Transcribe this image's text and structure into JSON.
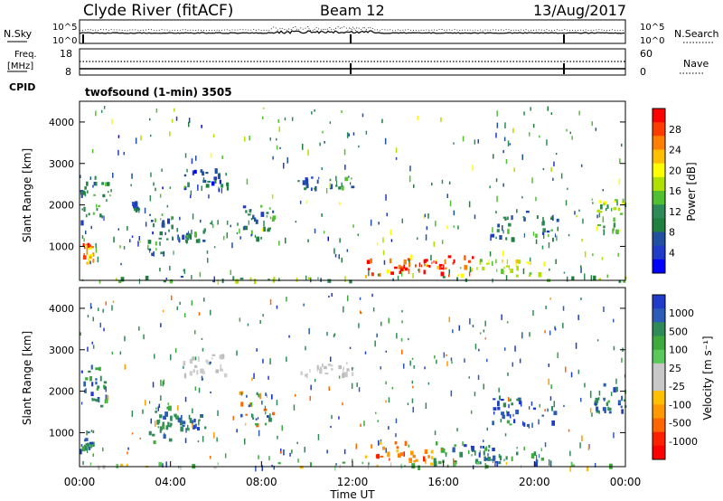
{
  "header": {
    "station": "Clyde River (fitACF)",
    "beam": "Beam 12",
    "date": "13/Aug/2017"
  },
  "noise_panel": {
    "left_label": "N.Sky",
    "right_label": "N.Search",
    "left_ticks": [
      "10^5",
      "10^0"
    ],
    "right_ticks": [
      "10^5",
      "10^0"
    ]
  },
  "freq_panel": {
    "left_label_line1": "Freq.",
    "left_label_line2": "[MHz]",
    "left_ticks": [
      "18",
      "8"
    ],
    "right_label": "Nave",
    "right_ticks": [
      "60",
      "0"
    ],
    "cpid_label": "CPID",
    "cpid_text": "twofsound (1-min) 3505"
  },
  "chart_data": [
    {
      "type": "heatmap",
      "quantity": "Power",
      "ylabel": "Slant Range [km]",
      "ylim": [
        180,
        4500
      ],
      "yticks": [
        "1000",
        "2000",
        "3000",
        "4000"
      ],
      "xlim": [
        0,
        24
      ],
      "colorbar": {
        "label": "Power [dB]",
        "ticks": [
          "28",
          "24",
          "20",
          "16",
          "12",
          "8",
          "4"
        ],
        "colors": [
          "#ff0000",
          "#ff3c00",
          "#ff7f00",
          "#ffc000",
          "#ffff00",
          "#b0e000",
          "#50c030",
          "#2e8b57",
          "#208040",
          "#2050a0",
          "#1f3cc8",
          "#0000ff"
        ]
      },
      "patches": [
        {
          "t": [
            0.0,
            0.6
          ],
          "r": [
            600,
            1100
          ],
          "level": 0.75
        },
        {
          "t": [
            0.0,
            1.2
          ],
          "r": [
            1600,
            2700
          ],
          "level": 0.3
        },
        {
          "t": [
            2.3,
            2.6
          ],
          "r": [
            1900,
            2100
          ],
          "level": 0.2
        },
        {
          "t": [
            3.0,
            4.2
          ],
          "r": [
            800,
            1800
          ],
          "level": 0.3
        },
        {
          "t": [
            4.2,
            5.5
          ],
          "r": [
            1100,
            1450
          ],
          "level": 0.25
        },
        {
          "t": [
            4.5,
            6.5
          ],
          "r": [
            2400,
            2900
          ],
          "level": 0.2
        },
        {
          "t": [
            7.0,
            8.5
          ],
          "r": [
            1200,
            2000
          ],
          "level": 0.3
        },
        {
          "t": [
            9.5,
            12.0
          ],
          "r": [
            2400,
            2700
          ],
          "level": 0.25
        },
        {
          "t": [
            12.5,
            17.5
          ],
          "r": [
            300,
            800
          ],
          "level": 0.8
        },
        {
          "t": [
            14.0,
            16.5
          ],
          "r": [
            400,
            700
          ],
          "level": 0.95
        },
        {
          "t": [
            17.5,
            20.5
          ],
          "r": [
            300,
            700
          ],
          "level": 0.55
        },
        {
          "t": [
            18.0,
            21.0
          ],
          "r": [
            1200,
            1900
          ],
          "level": 0.3
        },
        {
          "t": [
            22.5,
            24.0
          ],
          "r": [
            1400,
            2200
          ],
          "level": 0.45
        },
        {
          "t": [
            0.0,
            24.0
          ],
          "r": [
            180,
            300
          ],
          "level": 0.4
        }
      ]
    },
    {
      "type": "heatmap",
      "quantity": "Velocity",
      "ylabel": "Slant Range [km]",
      "ylim": [
        180,
        4500
      ],
      "yticks": [
        "1000",
        "2000",
        "3000",
        "4000"
      ],
      "xlim": [
        0,
        24
      ],
      "xticks": [
        "00:00",
        "04:00",
        "08:00",
        "12:00",
        "16:00",
        "20:00",
        "00:00"
      ],
      "xlabel": "Time UT",
      "colorbar": {
        "label": "Velocity [m s⁻¹]",
        "ticks": [
          "1000",
          "500",
          "100",
          "25",
          "-25",
          "-100",
          "-500",
          "-1000"
        ],
        "colors": [
          "#1f3cc8",
          "#2a5cb8",
          "#2e8b57",
          "#3caa3c",
          "#5ac85a",
          "#c8c8c8",
          "#c8c8c8",
          "#ffc000",
          "#ff9900",
          "#ff6600",
          "#ff2000",
          "#ff0000"
        ]
      },
      "patches": [
        {
          "t": [
            0.0,
            0.6
          ],
          "r": [
            600,
            1100
          ],
          "vel": "pos"
        },
        {
          "t": [
            0.0,
            1.2
          ],
          "r": [
            1600,
            2700
          ],
          "vel": "pos"
        },
        {
          "t": [
            3.0,
            4.2
          ],
          "r": [
            800,
            1800
          ],
          "vel": "pos"
        },
        {
          "t": [
            4.2,
            5.5
          ],
          "r": [
            1100,
            1450
          ],
          "vel": "pos"
        },
        {
          "t": [
            4.5,
            6.5
          ],
          "r": [
            2400,
            2900
          ],
          "vel": "zero"
        },
        {
          "t": [
            7.0,
            8.5
          ],
          "r": [
            1200,
            2000
          ],
          "vel": "mixed"
        },
        {
          "t": [
            9.5,
            12.0
          ],
          "r": [
            2400,
            2700
          ],
          "vel": "zero"
        },
        {
          "t": [
            12.5,
            15.5
          ],
          "r": [
            300,
            800
          ],
          "vel": "neg"
        },
        {
          "t": [
            15.5,
            18.0
          ],
          "r": [
            300,
            800
          ],
          "vel": "pos"
        },
        {
          "t": [
            17.5,
            20.5
          ],
          "r": [
            300,
            700
          ],
          "vel": "pos"
        },
        {
          "t": [
            18.0,
            21.0
          ],
          "r": [
            1200,
            1900
          ],
          "vel": "pos"
        },
        {
          "t": [
            22.5,
            24.0
          ],
          "r": [
            1400,
            2200
          ],
          "vel": "pos"
        },
        {
          "t": [
            0.0,
            24.0
          ],
          "r": [
            180,
            300
          ],
          "vel": "ground"
        }
      ]
    }
  ]
}
